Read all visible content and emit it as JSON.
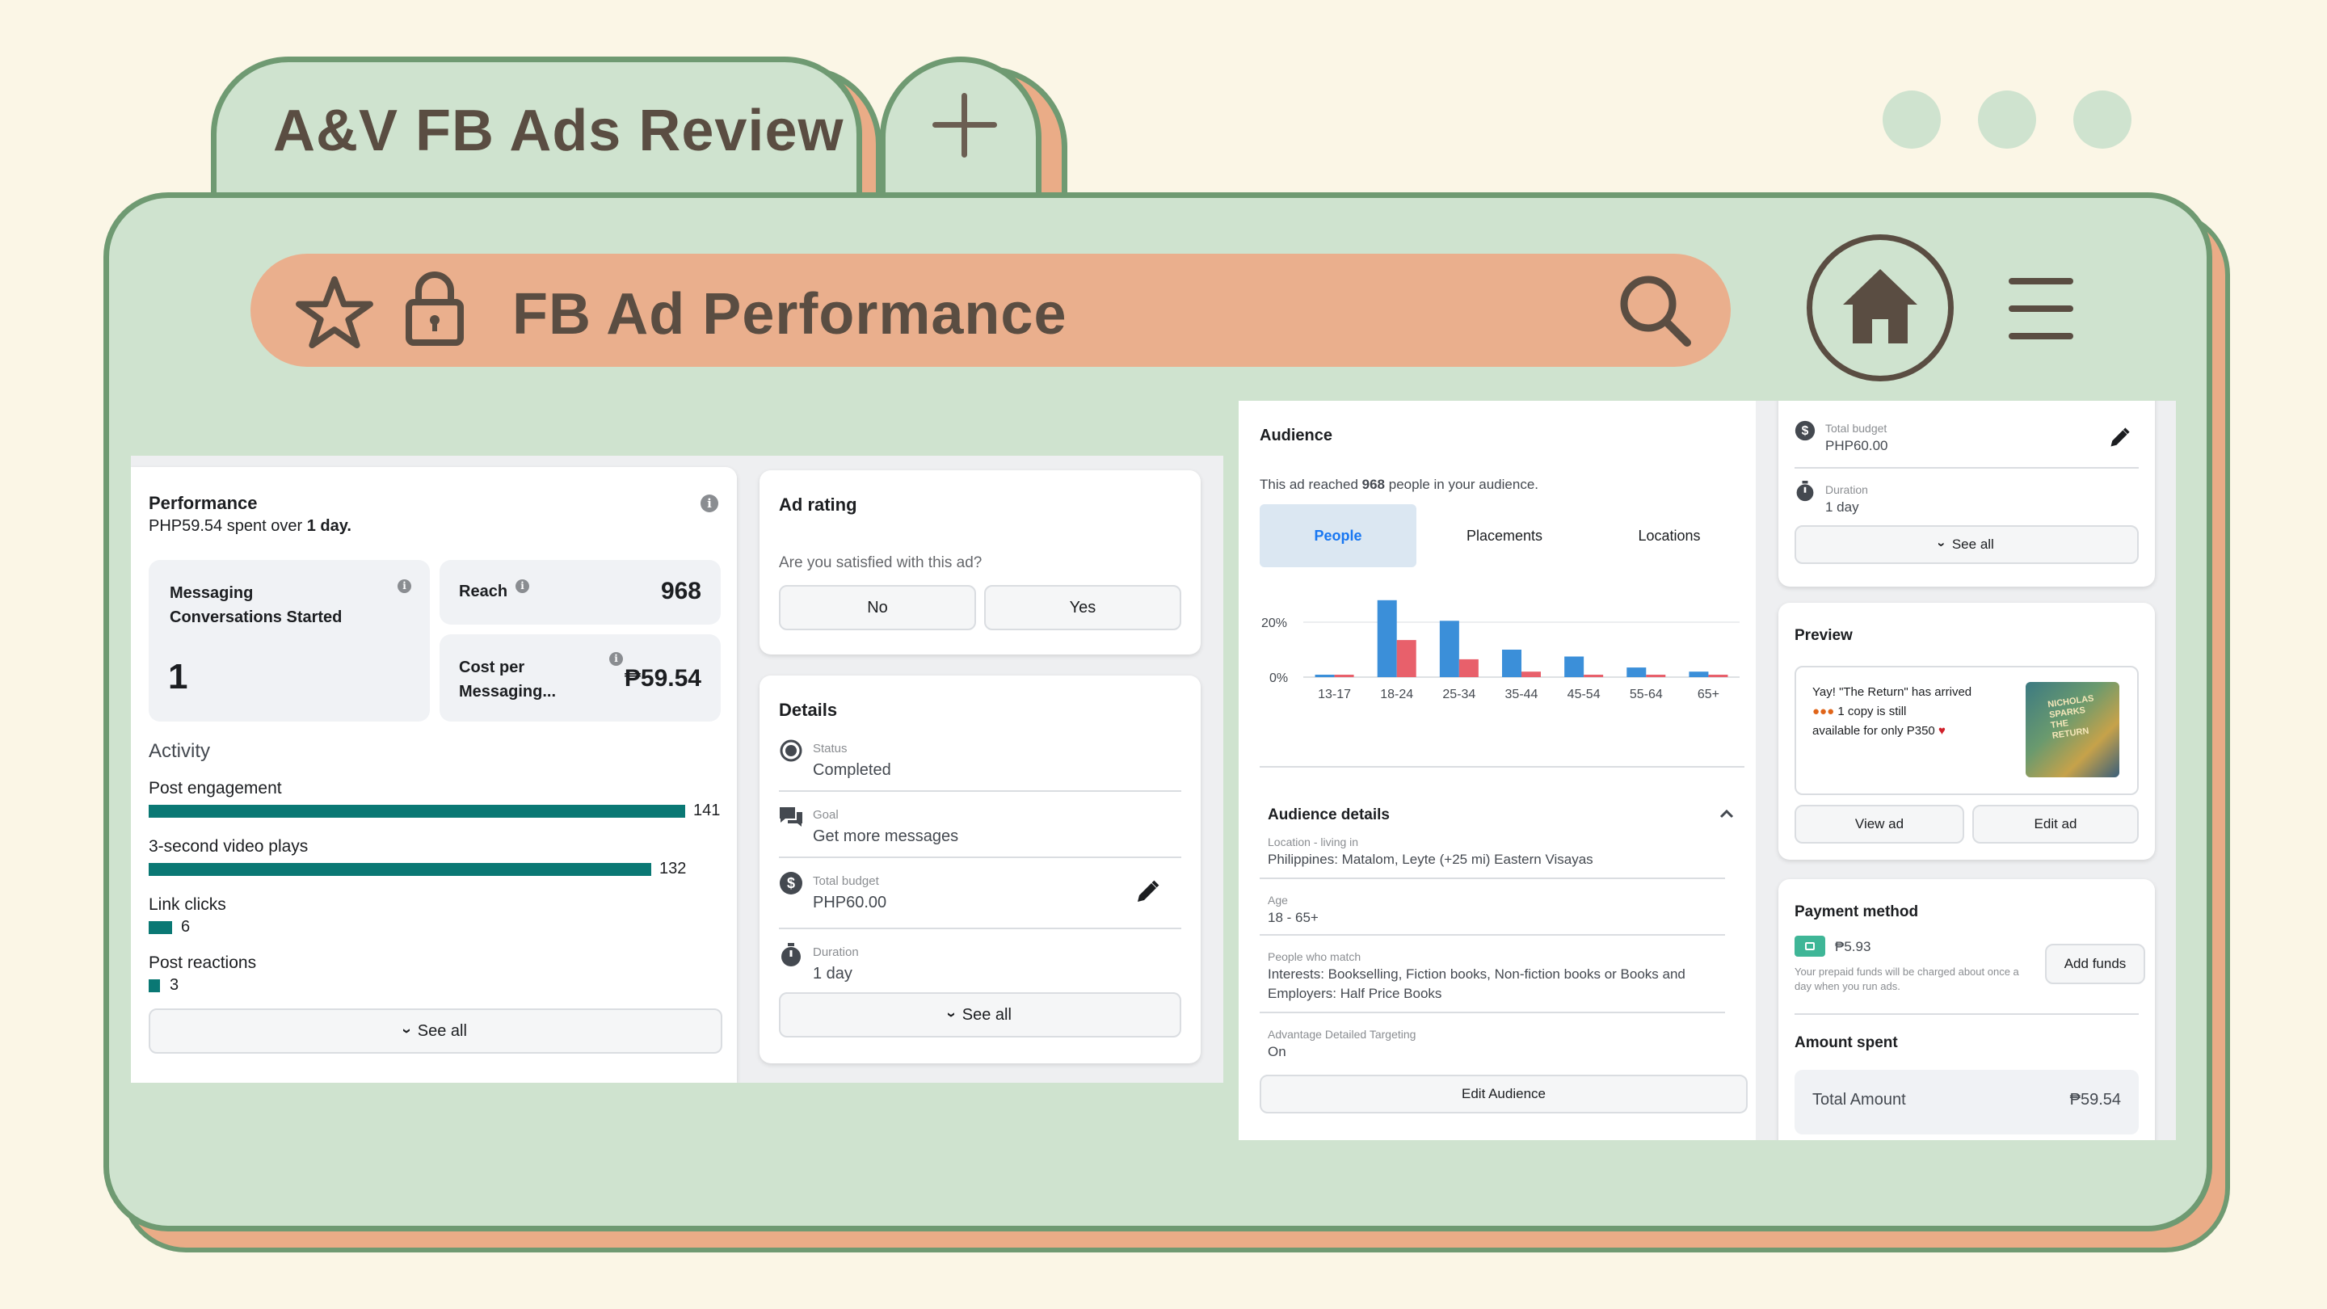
{
  "browser": {
    "tab_title": "A&V FB Ads Review",
    "url_text": "FB Ad Performance"
  },
  "performance": {
    "title": "Performance",
    "spent_amount": "PHP59.54",
    "spent_mid": "spent over",
    "spent_duration": "1 day.",
    "metrics": {
      "messaging_label": "Messaging Conversations Started",
      "messaging_value": "1",
      "reach_label": "Reach",
      "reach_value": "968",
      "cost_label": "Cost per Messaging...",
      "cost_value": "₱59.54"
    },
    "activity_title": "Activity",
    "activity": [
      {
        "label": "Post engagement",
        "value": "141",
        "fraction": 1.0
      },
      {
        "label": "3-second video plays",
        "value": "132",
        "fraction": 0.936
      },
      {
        "label": "Link clicks",
        "value": "6",
        "fraction": 0.043
      },
      {
        "label": "Post reactions",
        "value": "3",
        "fraction": 0.021
      }
    ],
    "see_all": "See all"
  },
  "ad_rating": {
    "title": "Ad rating",
    "question": "Are you satisfied with this ad?",
    "no": "No",
    "yes": "Yes"
  },
  "details": {
    "title": "Details",
    "status_label": "Status",
    "status_value": "Completed",
    "goal_label": "Goal",
    "goal_value": "Get more messages",
    "budget_label": "Total budget",
    "budget_value": "PHP60.00",
    "duration_label": "Duration",
    "duration_value": "1 day",
    "see_all": "See all"
  },
  "audience": {
    "title": "Audience",
    "reach_prefix": "This ad reached",
    "reach_count": "968",
    "reach_suffix": "people in your audience.",
    "tabs": [
      "People",
      "Placements",
      "Locations"
    ],
    "details_title": "Audience details",
    "location_label": "Location - living in",
    "location_value": "Philippines: Matalom, Leyte (+25 mi) Eastern Visayas",
    "age_label": "Age",
    "age_value": "18 - 65+",
    "match_label": "People who match",
    "match_value_1": "Interests: Bookselling, Fiction books, Non-fiction books or Books and",
    "match_value_2": "Employers: Half Price Books",
    "adv_label": "Advantage Detailed Targeting",
    "adv_value": "On",
    "edit_button": "Edit Audience"
  },
  "chart_data": {
    "type": "bar",
    "categories": [
      "13-17",
      "18-24",
      "25-34",
      "35-44",
      "45-54",
      "55-64",
      "65+"
    ],
    "series": [
      {
        "color": "#3b8fd9",
        "values": [
          0.5,
          28,
          20.5,
          10,
          7.5,
          3.5,
          2
        ]
      },
      {
        "color": "#e8606b",
        "values": [
          0.5,
          13.5,
          6.5,
          2,
          0.5,
          0.5,
          0.5
        ]
      }
    ],
    "yticks": [
      "20%",
      "0%"
    ],
    "ylim": [
      0,
      30
    ]
  },
  "side": {
    "budget_label": "Total budget",
    "budget_value": "PHP60.00",
    "duration_label": "Duration",
    "duration_value": "1 day",
    "see_all": "See all",
    "preview_title": "Preview",
    "preview_line1": "Yay! \"The Return\" has arrived",
    "preview_line2": "1 copy is still",
    "preview_line3": "available for only P350",
    "book_title": "NICHOLAS SPARKS THE RETURN",
    "view_ad": "View ad",
    "edit_ad": "Edit ad",
    "payment_title": "Payment method",
    "balance": "₱5.93",
    "prepaid_note": "Your prepaid funds will be charged about once a day when you run ads.",
    "add_funds": "Add funds",
    "amount_title": "Amount spent",
    "total_label": "Total Amount",
    "total_value": "₱59.54"
  },
  "colors": {
    "frame_green": "#cfe3cf",
    "frame_border": "#6f9a72",
    "accent_orange": "#eaac87",
    "activity_bar": "#0a7874",
    "fb_blue": "#1877f2"
  }
}
